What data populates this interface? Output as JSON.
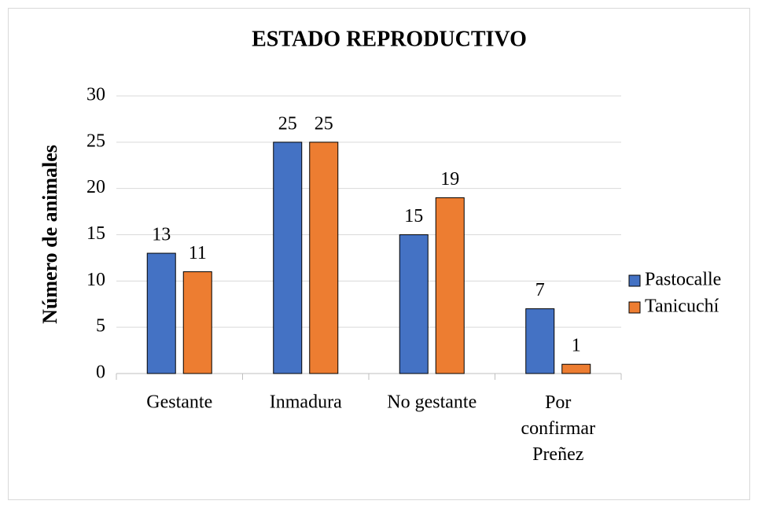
{
  "chart_data": {
    "type": "bar",
    "title": "ESTADO REPRODUCTIVO",
    "ylabel": "Número de animales",
    "categories": [
      "Gestante",
      "Inmadura",
      "No gestante",
      "Por confirmar Preñez"
    ],
    "series": [
      {
        "name": "Pastocalle",
        "color": "#4472c4",
        "values": [
          13,
          25,
          15,
          7
        ]
      },
      {
        "name": "Tanicuchí",
        "color": "#ed7d31",
        "values": [
          11,
          25,
          19,
          1
        ]
      }
    ],
    "ylim": [
      0,
      30
    ],
    "yticks": [
      0,
      5,
      10,
      15,
      20,
      25,
      30
    ],
    "grid": true,
    "legend": "right"
  }
}
